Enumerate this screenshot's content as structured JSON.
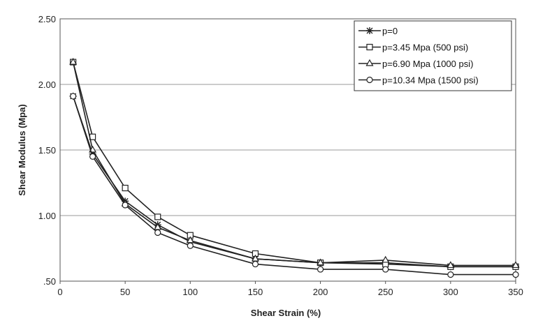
{
  "chart_data": {
    "type": "line",
    "title": "",
    "xlabel": "Shear Strain (%)",
    "ylabel": "Shear Modulus (Mpa)",
    "xlim": [
      0,
      350
    ],
    "ylim": [
      0.5,
      2.5
    ],
    "x_ticks": [
      "0",
      "50",
      "100",
      "150",
      "200",
      "250",
      "300",
      "350"
    ],
    "y_ticks": [
      ".50",
      "1.00",
      "1.50",
      "2.00",
      "2.50"
    ],
    "grid": "horizontal",
    "legend_position": "top-right",
    "x": [
      10,
      25,
      50,
      75,
      100,
      150,
      200,
      250,
      300,
      350
    ],
    "series": [
      {
        "name": "p=0",
        "marker": "asterisk",
        "values": [
          1.91,
          1.47,
          1.11,
          0.93,
          0.8,
          0.67,
          0.64,
          0.64,
          0.61,
          0.61
        ]
      },
      {
        "name": "p=3.45 Mpa (500 psi)",
        "marker": "square",
        "values": [
          2.17,
          1.6,
          1.21,
          0.99,
          0.85,
          0.71,
          0.64,
          0.63,
          0.61,
          0.61
        ]
      },
      {
        "name": "p=6.90 Mpa (1000 psi)",
        "marker": "triangle",
        "values": [
          2.17,
          1.5,
          1.09,
          0.91,
          0.81,
          0.67,
          0.64,
          0.66,
          0.62,
          0.62
        ]
      },
      {
        "name": "p=10.34 Mpa (1500 psi)",
        "marker": "circle",
        "values": [
          1.91,
          1.45,
          1.08,
          0.87,
          0.77,
          0.63,
          0.59,
          0.59,
          0.55,
          0.55
        ]
      }
    ]
  }
}
